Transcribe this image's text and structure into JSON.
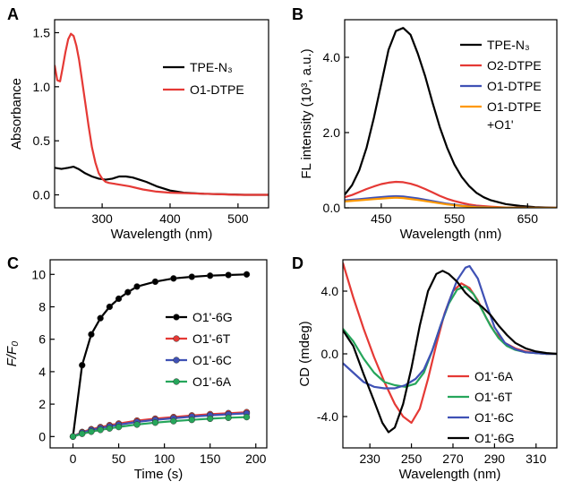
{
  "chart_data": [
    {
      "panel": "A",
      "type": "line",
      "xlabel": "Wavelength (nm)",
      "ylabel": "Absorbance",
      "xlim": [
        230,
        545
      ],
      "ylim": [
        -0.12,
        1.62
      ],
      "xticks": [
        300,
        400,
        500
      ],
      "yticks": [
        0.0,
        0.5,
        1.0,
        1.5
      ],
      "ytick_labels": [
        "0.0",
        "0.5",
        "1.0",
        "1.5"
      ],
      "legend": "top-right",
      "series": [
        {
          "name": "TPE-N₃",
          "color": "#000000",
          "x": [
            230,
            240,
            250,
            258,
            265,
            275,
            285,
            295,
            305,
            315,
            325,
            335,
            345,
            355,
            365,
            380,
            400,
            420,
            450,
            480,
            510,
            545
          ],
          "y": [
            0.25,
            0.24,
            0.25,
            0.26,
            0.24,
            0.2,
            0.17,
            0.15,
            0.14,
            0.15,
            0.17,
            0.17,
            0.16,
            0.14,
            0.12,
            0.08,
            0.04,
            0.02,
            0.01,
            0.005,
            0.0,
            0.0
          ]
        },
        {
          "name": "O1-DTPE",
          "color": "#e53935",
          "x": [
            230,
            234,
            238,
            242,
            246,
            250,
            254,
            258,
            262,
            266,
            270,
            275,
            280,
            285,
            290,
            295,
            300,
            305,
            310,
            320,
            340,
            360,
            380,
            400,
            450,
            500,
            545
          ],
          "y": [
            1.2,
            1.06,
            1.05,
            1.18,
            1.32,
            1.44,
            1.49,
            1.47,
            1.38,
            1.25,
            1.08,
            0.86,
            0.64,
            0.44,
            0.3,
            0.2,
            0.15,
            0.12,
            0.11,
            0.1,
            0.08,
            0.05,
            0.03,
            0.02,
            0.01,
            0.0,
            0.0
          ]
        }
      ]
    },
    {
      "panel": "B",
      "type": "line",
      "xlabel": "Wavelength (nm)",
      "ylabel": "FL intensity (10³, a.u.)",
      "xlim": [
        400,
        690
      ],
      "ylim": [
        0,
        5.0
      ],
      "xticks": [
        450,
        550,
        650
      ],
      "yticks": [
        0.0,
        2.0,
        4.0
      ],
      "ytick_labels": [
        "0.0",
        "2.0",
        "4.0"
      ],
      "legend": "top-right",
      "series": [
        {
          "name": "TPE-N₃",
          "color": "#000000",
          "x": [
            400,
            410,
            420,
            430,
            440,
            450,
            460,
            470,
            480,
            490,
            500,
            510,
            520,
            530,
            540,
            550,
            560,
            570,
            580,
            590,
            600,
            620,
            640,
            660,
            690
          ],
          "y": [
            0.35,
            0.6,
            1.0,
            1.6,
            2.4,
            3.3,
            4.2,
            4.7,
            4.78,
            4.6,
            4.1,
            3.5,
            2.8,
            2.15,
            1.6,
            1.15,
            0.82,
            0.58,
            0.4,
            0.28,
            0.2,
            0.1,
            0.05,
            0.02,
            0.0
          ]
        },
        {
          "name": "O2-DTPE",
          "color": "#e53935",
          "x": [
            400,
            410,
            420,
            430,
            440,
            450,
            460,
            470,
            480,
            490,
            500,
            510,
            520,
            530,
            540,
            550,
            560,
            570,
            580,
            600,
            620,
            650,
            690
          ],
          "y": [
            0.28,
            0.34,
            0.42,
            0.5,
            0.57,
            0.63,
            0.67,
            0.69,
            0.68,
            0.64,
            0.58,
            0.5,
            0.41,
            0.32,
            0.24,
            0.18,
            0.13,
            0.09,
            0.06,
            0.03,
            0.01,
            0.0,
            0.0
          ]
        },
        {
          "name": "O1-DTPE",
          "color": "#3f51b5",
          "x": [
            400,
            420,
            440,
            460,
            470,
            480,
            500,
            520,
            540,
            560,
            580,
            600,
            650,
            690
          ],
          "y": [
            0.2,
            0.23,
            0.27,
            0.3,
            0.31,
            0.3,
            0.25,
            0.18,
            0.11,
            0.06,
            0.03,
            0.01,
            0.0,
            0.0
          ]
        },
        {
          "name": "O1-DTPE",
          "name_line2": "+O1'",
          "color": "#ff9800",
          "x": [
            400,
            420,
            440,
            460,
            470,
            480,
            500,
            520,
            540,
            560,
            580,
            600,
            650,
            690
          ],
          "y": [
            0.17,
            0.2,
            0.23,
            0.26,
            0.27,
            0.26,
            0.21,
            0.15,
            0.09,
            0.05,
            0.02,
            0.01,
            0.0,
            0.0
          ]
        }
      ]
    },
    {
      "panel": "C",
      "type": "line",
      "xlabel": "Time (s)",
      "ylabel": "F/F₀",
      "xlim": [
        -25,
        212
      ],
      "ylim": [
        -0.7,
        10.9
      ],
      "xticks": [
        0,
        50,
        100,
        150,
        200
      ],
      "yticks": [
        0,
        2,
        4,
        6,
        8,
        10
      ],
      "ytick_labels": [
        "0",
        "2",
        "4",
        "6",
        "8",
        "10"
      ],
      "legend": "right",
      "markers": true,
      "series": [
        {
          "name": "O1'-6G",
          "color": "#000000",
          "x": [
            0,
            10,
            20,
            30,
            40,
            50,
            60,
            70,
            90,
            110,
            130,
            150,
            170,
            190
          ],
          "y": [
            0.0,
            4.4,
            6.3,
            7.3,
            8.0,
            8.5,
            8.9,
            9.25,
            9.55,
            9.75,
            9.85,
            9.92,
            9.96,
            10.0
          ]
        },
        {
          "name": "O1'-6T",
          "color": "#e53935",
          "x": [
            0,
            10,
            20,
            30,
            40,
            50,
            70,
            90,
            110,
            130,
            150,
            170,
            190
          ],
          "y": [
            0.0,
            0.28,
            0.45,
            0.58,
            0.7,
            0.8,
            0.98,
            1.1,
            1.2,
            1.3,
            1.38,
            1.44,
            1.5
          ]
        },
        {
          "name": "O1'-6C",
          "color": "#3f51b5",
          "x": [
            0,
            10,
            20,
            30,
            40,
            50,
            70,
            90,
            110,
            130,
            150,
            170,
            190
          ],
          "y": [
            0.0,
            0.24,
            0.4,
            0.52,
            0.63,
            0.73,
            0.9,
            1.03,
            1.13,
            1.23,
            1.31,
            1.37,
            1.43
          ]
        },
        {
          "name": "O1'-6A",
          "color": "#26a65b",
          "x": [
            0,
            10,
            20,
            30,
            40,
            50,
            70,
            90,
            110,
            130,
            150,
            170,
            190
          ],
          "y": [
            0.0,
            0.17,
            0.3,
            0.41,
            0.5,
            0.59,
            0.74,
            0.86,
            0.95,
            1.03,
            1.1,
            1.16,
            1.2
          ]
        }
      ]
    },
    {
      "panel": "D",
      "type": "line",
      "xlabel": "Wavelength (nm)",
      "ylabel": "CD (mdeg)",
      "xlim": [
        217,
        320
      ],
      "ylim": [
        -6.0,
        6.0
      ],
      "xticks": [
        230,
        250,
        270,
        290,
        310
      ],
      "yticks": [
        -4.0,
        0.0,
        4.0
      ],
      "ytick_labels": [
        "-4.0",
        "0.0",
        "4.0"
      ],
      "legend": "bottom-right",
      "series": [
        {
          "name": "O1'-6A",
          "color": "#e53935",
          "x": [
            217,
            222,
            227,
            232,
            237,
            242,
            246,
            250,
            254,
            258,
            262,
            266,
            270,
            274,
            278,
            282,
            286,
            290,
            295,
            300,
            305,
            310,
            315,
            320
          ],
          "y": [
            5.8,
            3.6,
            1.6,
            -0.2,
            -1.8,
            -3.2,
            -4.0,
            -4.4,
            -3.5,
            -1.6,
            0.6,
            2.6,
            4.0,
            4.5,
            4.2,
            3.4,
            2.3,
            1.4,
            0.7,
            0.35,
            0.15,
            0.05,
            0.0,
            0.0
          ]
        },
        {
          "name": "O1'-6T",
          "color": "#26a65b",
          "x": [
            217,
            222,
            227,
            232,
            237,
            242,
            247,
            252,
            256,
            260,
            264,
            268,
            272,
            276,
            280,
            284,
            288,
            292,
            296,
            300,
            305,
            310,
            315,
            320
          ],
          "y": [
            1.6,
            0.8,
            -0.3,
            -1.2,
            -1.8,
            -2.0,
            -2.1,
            -1.9,
            -1.2,
            0.2,
            1.8,
            3.2,
            4.1,
            4.3,
            3.8,
            2.8,
            1.8,
            1.0,
            0.5,
            0.25,
            0.1,
            0.05,
            0.0,
            0.0
          ]
        },
        {
          "name": "O1'-6C",
          "color": "#3f51b5",
          "x": [
            217,
            222,
            227,
            232,
            237,
            242,
            247,
            252,
            256,
            260,
            264,
            268,
            272,
            276,
            278,
            282,
            286,
            290,
            295,
            300,
            305,
            310,
            315,
            320
          ],
          "y": [
            -0.6,
            -1.2,
            -1.8,
            -2.1,
            -2.2,
            -2.2,
            -2.0,
            -1.6,
            -1.0,
            0.2,
            1.8,
            3.3,
            4.7,
            5.5,
            5.6,
            4.8,
            3.2,
            1.7,
            0.7,
            0.3,
            0.1,
            0.05,
            0.0,
            0.0
          ]
        },
        {
          "name": "O1'-6G",
          "color": "#000000",
          "x": [
            217,
            222,
            227,
            232,
            236,
            239,
            242,
            246,
            250,
            254,
            258,
            262,
            265,
            268,
            272,
            276,
            280,
            284,
            288,
            292,
            296,
            300,
            305,
            310,
            315,
            320
          ],
          "y": [
            1.5,
            0.5,
            -1.3,
            -3.0,
            -4.4,
            -5.0,
            -4.7,
            -3.2,
            -0.9,
            1.8,
            4.0,
            5.1,
            5.3,
            5.1,
            4.6,
            3.9,
            3.4,
            3.0,
            2.5,
            1.8,
            1.2,
            0.7,
            0.35,
            0.15,
            0.05,
            0.0
          ]
        }
      ]
    }
  ]
}
